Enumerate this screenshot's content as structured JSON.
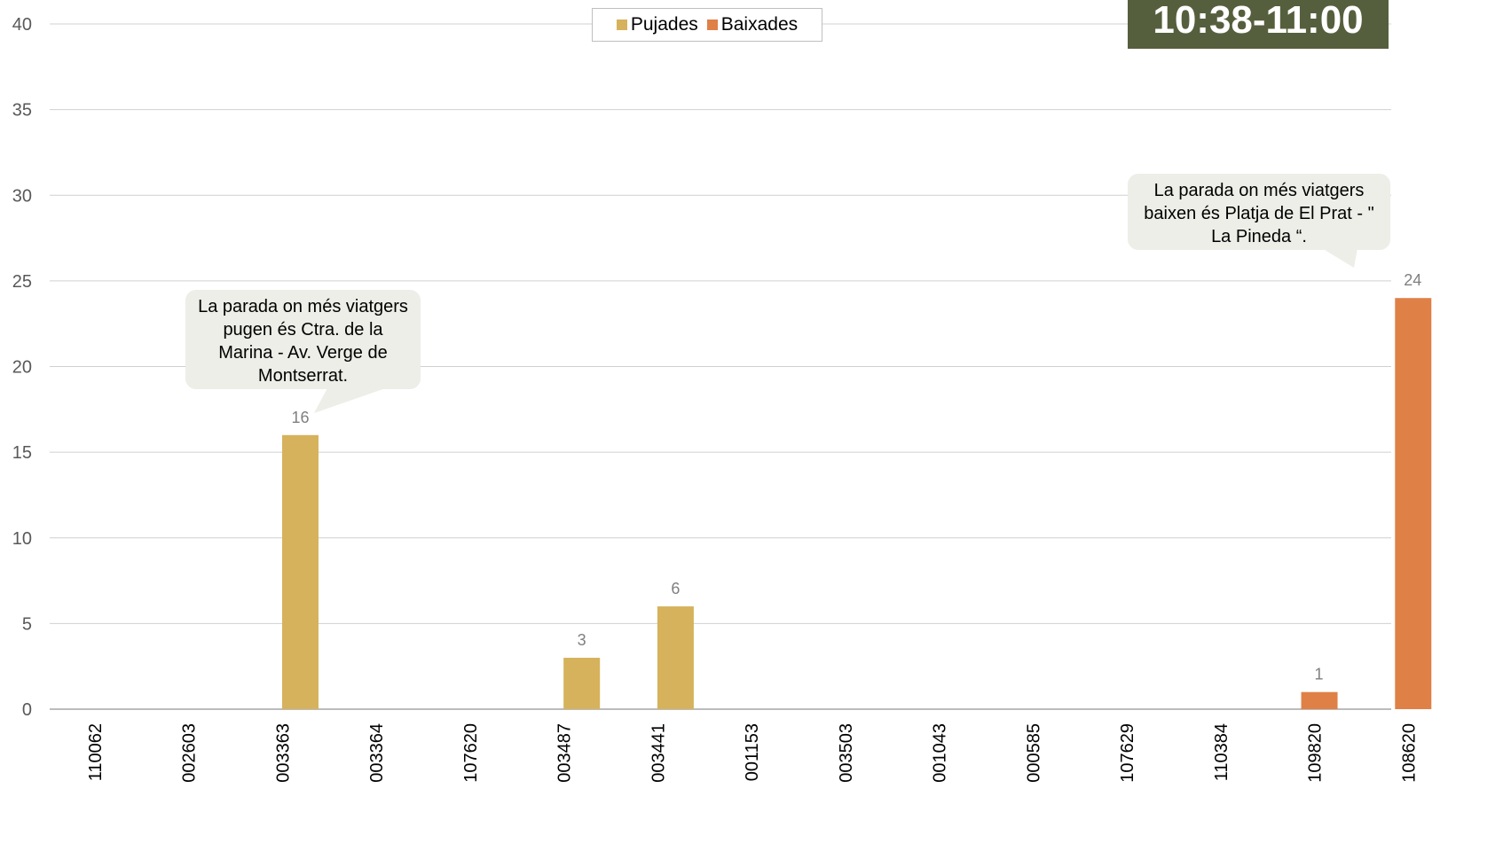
{
  "chart_data": {
    "type": "bar",
    "categories": [
      "110062",
      "002603",
      "003363",
      "003364",
      "107620",
      "003487",
      "003441",
      "001153",
      "003503",
      "001043",
      "000585",
      "107629",
      "110384",
      "109820",
      "108620"
    ],
    "series": [
      {
        "name": "Pujades",
        "color": "#d6b25c",
        "values": [
          0,
          0,
          16,
          0,
          0,
          3,
          6,
          0,
          0,
          0,
          0,
          0,
          0,
          0,
          0
        ]
      },
      {
        "name": "Baixades",
        "color": "#df8047",
        "values": [
          0,
          0,
          0,
          0,
          0,
          0,
          0,
          0,
          0,
          0,
          0,
          0,
          0,
          1,
          24
        ]
      }
    ],
    "y_ticks": [
      0,
      5,
      10,
      15,
      20,
      25,
      30,
      35,
      40
    ],
    "ylim": [
      0,
      40
    ],
    "grid": true,
    "legend_position": "top",
    "title": "10:38-11:00",
    "annotations": [
      "La parada on més viatgers pugen és Ctra. de la Marina - Av. Verge de Montserrat.",
      "La parada on més viatgers baixen és Platja de El Prat - \" La Pineda “."
    ]
  }
}
